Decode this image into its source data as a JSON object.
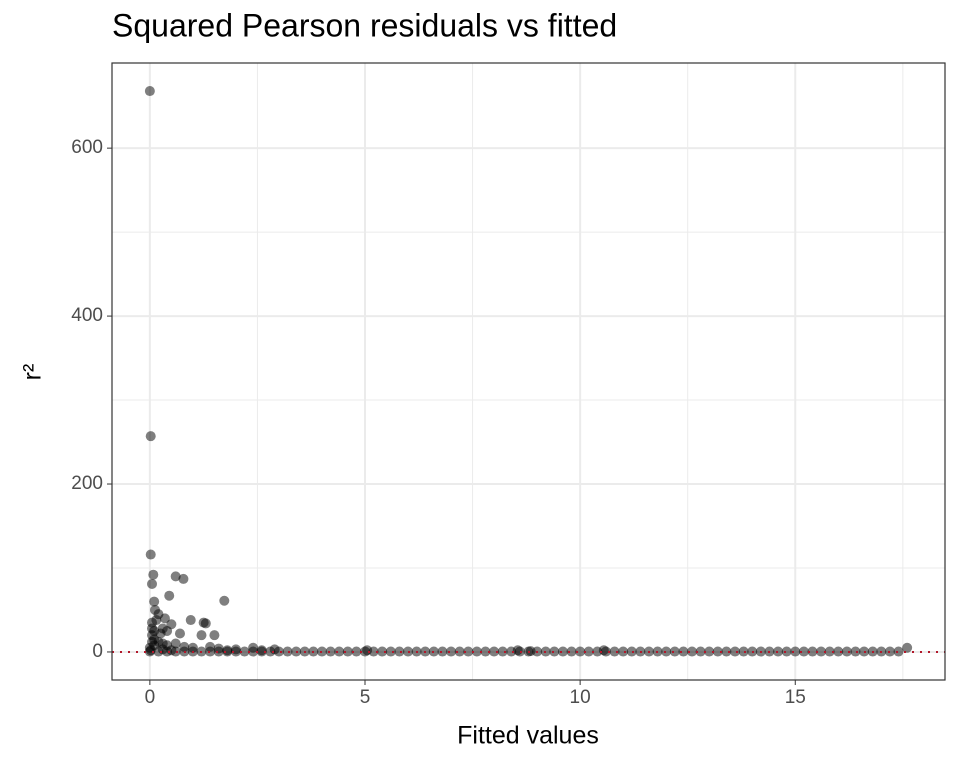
{
  "chart_data": {
    "type": "scatter",
    "title": "Squared Pearson residuals vs fitted",
    "x_label": "Fitted values",
    "y_label": "r²",
    "xlim": [
      -0.88,
      18.48
    ],
    "ylim": [
      -33.4,
      701.4
    ],
    "xticks": [
      0,
      5,
      10,
      15
    ],
    "yticks": [
      0,
      200,
      400,
      600
    ],
    "xminorticks": [
      2.5,
      7.5,
      12.5,
      17.5
    ],
    "yminorticks": [
      100,
      300,
      500
    ],
    "grid": true,
    "hline": 0,
    "hline_color": "#b2182b",
    "color": "#000000",
    "series": [
      {
        "x": [
          0.0,
          0.02,
          0.02,
          0.08,
          0.05,
          0.6,
          0.78,
          1.73,
          0.45,
          0.1,
          0.12,
          0.2,
          0.15,
          0.35,
          0.95,
          1.25,
          1.3,
          0.5,
          0.3,
          0.4,
          0.25,
          0.7,
          1.2,
          1.5,
          0.05,
          0.05,
          0.05,
          0.05,
          0.1,
          0.1,
          0.1,
          0.2,
          0.3,
          0.4,
          0.6,
          0.8,
          1.0,
          1.4,
          1.6,
          2.4,
          2.0,
          1.8,
          2.6,
          2.9,
          5.05,
          8.55,
          8.85,
          10.55,
          17.6,
          0.0,
          0.02,
          0.3,
          0.5,
          0.0,
          0.2,
          0.4,
          0.6,
          0.8,
          1.0,
          1.2,
          1.4,
          1.6,
          1.8,
          2.0,
          2.2,
          2.4,
          2.6,
          2.8,
          3.0,
          3.2,
          3.4,
          3.6,
          3.8,
          4.0,
          4.2,
          4.4,
          4.6,
          4.8,
          5.0,
          5.2,
          5.4,
          5.6,
          5.8,
          6.0,
          6.2,
          6.4,
          6.6,
          6.8,
          7.0,
          7.2,
          7.4,
          7.6,
          7.8,
          8.0,
          8.2,
          8.4,
          8.6,
          8.8,
          9.0,
          9.2,
          9.4,
          9.6,
          9.8,
          10.0,
          10.2,
          10.4,
          10.6,
          10.8,
          11.0,
          11.2,
          11.4,
          11.6,
          11.8,
          12.0,
          12.2,
          12.4,
          12.6,
          12.8,
          13.0,
          13.2,
          13.4,
          13.6,
          13.8,
          14.0,
          14.2,
          14.4,
          14.6,
          14.8,
          15.0,
          15.2,
          15.4,
          15.6,
          15.8,
          16.0,
          16.2,
          16.4,
          16.6,
          16.8,
          17.0,
          17.2,
          17.4
        ],
        "y": [
          668,
          257,
          116,
          92,
          81,
          90,
          87,
          61,
          67,
          60,
          50,
          45,
          38,
          40,
          38,
          35,
          34,
          33,
          28,
          25,
          22,
          22,
          20,
          20,
          35,
          28,
          20,
          12,
          25,
          15,
          8,
          12,
          10,
          8,
          10,
          6,
          5,
          6,
          4,
          5,
          3,
          2,
          2,
          3,
          2,
          2,
          1,
          2,
          5,
          5,
          2,
          3,
          2,
          0.5,
          0.5,
          0.5,
          0.5,
          0.5,
          0.5,
          0.5,
          0.5,
          0.5,
          0.5,
          0.5,
          0.5,
          0.5,
          0.5,
          0.5,
          0.5,
          0.5,
          0.5,
          0.5,
          0.5,
          0.5,
          0.5,
          0.5,
          0.5,
          0.5,
          0.5,
          0.5,
          0.5,
          0.5,
          0.5,
          0.5,
          0.5,
          0.5,
          0.5,
          0.5,
          0.5,
          0.5,
          0.5,
          0.5,
          0.5,
          0.5,
          0.5,
          0.5,
          0.5,
          0.5,
          0.5,
          0.5,
          0.5,
          0.5,
          0.5,
          0.5,
          0.5,
          0.5,
          0.5,
          0.5,
          0.5,
          0.5,
          0.5,
          0.5,
          0.5,
          0.5,
          0.5,
          0.5,
          0.5,
          0.5,
          0.5,
          0.5,
          0.5,
          0.5,
          0.5,
          0.5,
          0.5,
          0.5,
          0.5,
          0.5,
          0.5,
          0.5,
          0.5,
          0.5,
          0.5,
          0.5,
          0.5,
          0.5,
          0.5,
          0.5,
          0.5,
          0.5,
          0.5
        ]
      }
    ]
  }
}
